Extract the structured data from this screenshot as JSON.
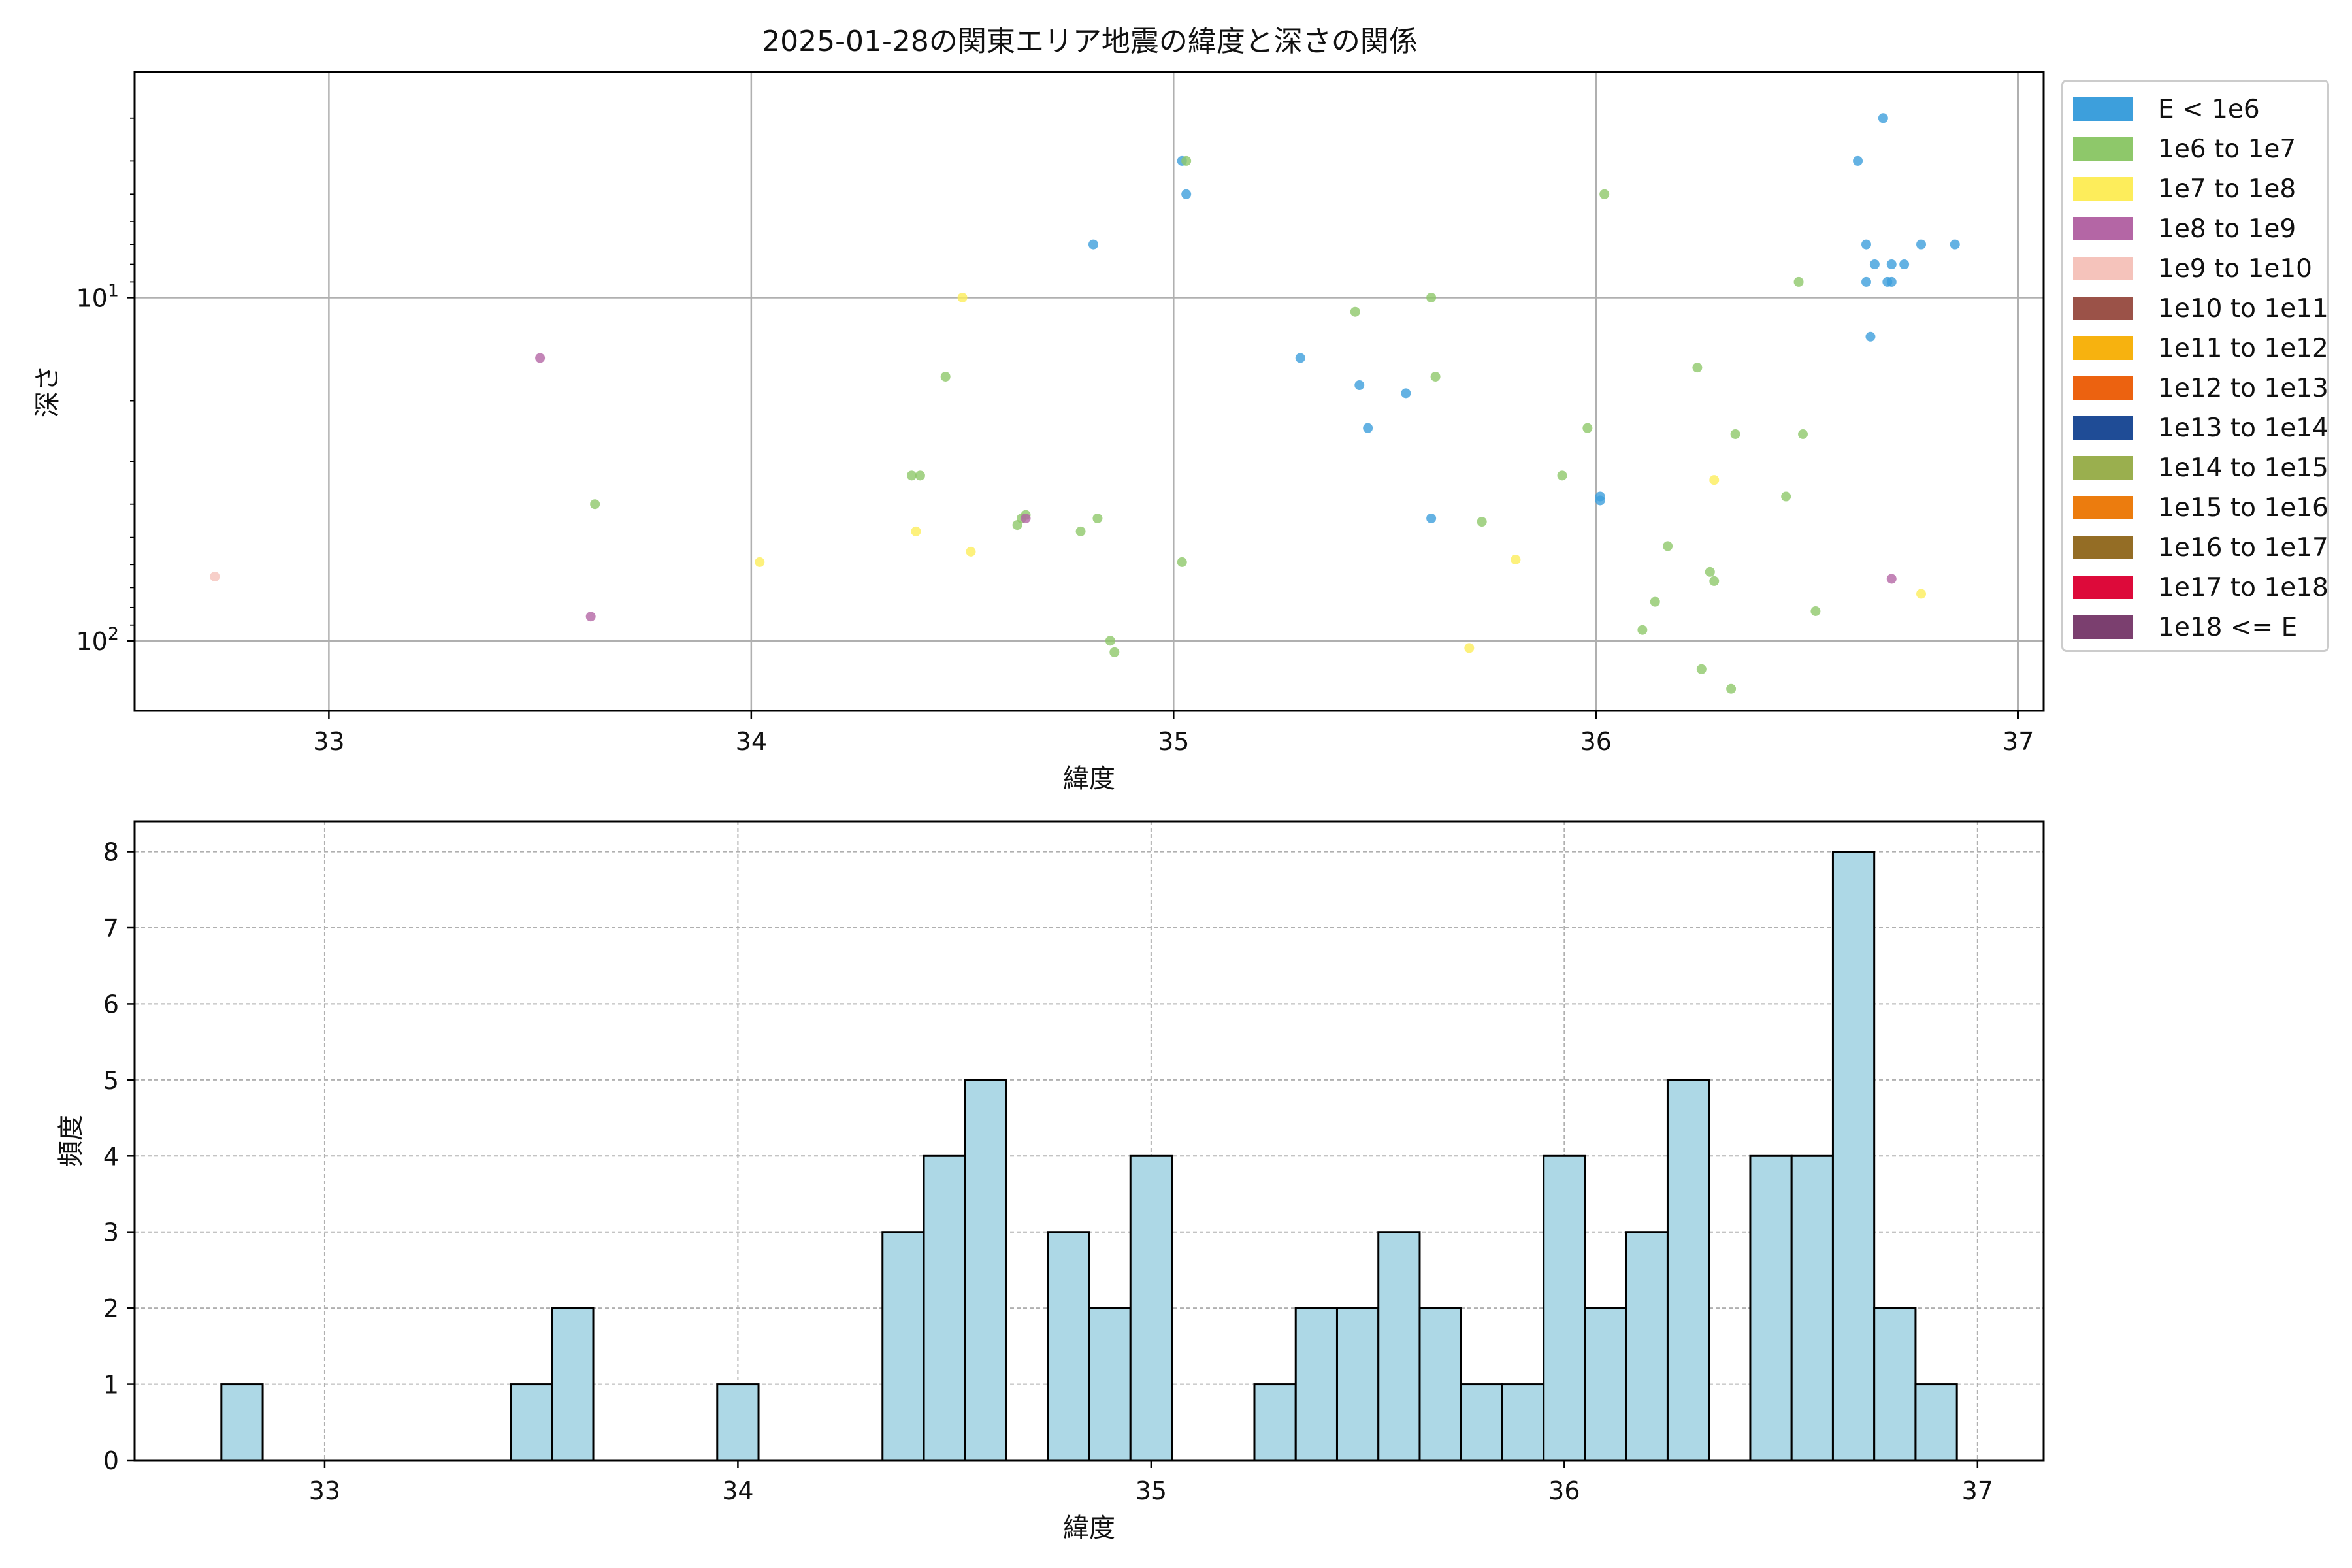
{
  "chart_data": [
    {
      "type": "scatter",
      "title": "2025-01-28の関東エリア地震の緯度と深さの関係",
      "xlabel": "緯度",
      "ylabel": "深さ",
      "xlim": [
        32.54,
        37.06
      ],
      "ylim": [
        160,
        2.2
      ],
      "y_scale": "log",
      "y_inverted": true,
      "x_ticks": [
        "33",
        "34",
        "35",
        "36",
        "37"
      ],
      "y_ticks": [
        {
          "value": 10,
          "label": "10^1"
        },
        {
          "value": 100,
          "label": "10^2"
        }
      ],
      "grid": true,
      "legend_position": "outside-right",
      "legend": [
        {
          "label": "E < 1e6",
          "color": "#3d9fdc"
        },
        {
          "label": "1e6 to 1e7",
          "color": "#8ec86a"
        },
        {
          "label": "1e7 to 1e8",
          "color": "#fded5b"
        },
        {
          "label": "1e8 to 1e9",
          "color": "#b466a5"
        },
        {
          "label": "1e9 to 1e10",
          "color": "#f5c3bb"
        },
        {
          "label": "1e10 to 1e11",
          "color": "#9b5248"
        },
        {
          "label": "1e11 to 1e12",
          "color": "#f7b20f"
        },
        {
          "label": "1e12 to 1e13",
          "color": "#ec6210"
        },
        {
          "label": "1e13 to 1e14",
          "color": "#1f4c96"
        },
        {
          "label": "1e14 to 1e15",
          "color": "#9aaf4e"
        },
        {
          "label": "1e15 to 1e16",
          "color": "#ec7c0e"
        },
        {
          "label": "1e16 to 1e17",
          "color": "#946d25"
        },
        {
          "label": "1e17 to 1e18",
          "color": "#dd0a3a"
        },
        {
          "label": "1e18 <= E",
          "color": "#7b3f6f"
        }
      ],
      "series": [
        {
          "name": "E < 1e6",
          "color": "#3d9fdc",
          "points": [
            [
              34.81,
              7
            ],
            [
              35.02,
              4
            ],
            [
              35.03,
              5
            ],
            [
              35.3,
              15
            ],
            [
              35.44,
              18
            ],
            [
              35.46,
              24
            ],
            [
              35.55,
              19
            ],
            [
              35.61,
              44
            ],
            [
              36.01,
              38
            ],
            [
              36.01,
              39
            ],
            [
              36.62,
              4
            ],
            [
              36.64,
              7
            ],
            [
              36.64,
              9
            ],
            [
              36.66,
              8
            ],
            [
              36.68,
              3
            ],
            [
              36.69,
              9
            ],
            [
              36.7,
              8
            ],
            [
              36.7,
              9
            ],
            [
              36.73,
              8
            ],
            [
              36.65,
              13
            ],
            [
              36.77,
              7
            ],
            [
              36.85,
              7
            ]
          ]
        },
        {
          "name": "1e6 to 1e7",
          "color": "#8ec86a",
          "points": [
            [
              33.63,
              40
            ],
            [
              34.38,
              33
            ],
            [
              34.4,
              33
            ],
            [
              34.46,
              17
            ],
            [
              34.63,
              46
            ],
            [
              34.64,
              44
            ],
            [
              34.65,
              43
            ],
            [
              34.78,
              48
            ],
            [
              34.82,
              44
            ],
            [
              34.85,
              100
            ],
            [
              34.86,
              108
            ],
            [
              35.02,
              59
            ],
            [
              35.03,
              4
            ],
            [
              35.43,
              11
            ],
            [
              35.61,
              10
            ],
            [
              35.62,
              17
            ],
            [
              35.73,
              45
            ],
            [
              35.92,
              33
            ],
            [
              35.98,
              24
            ],
            [
              36.02,
              5
            ],
            [
              36.11,
              93
            ],
            [
              36.14,
              77
            ],
            [
              36.17,
              53
            ],
            [
              36.24,
              16
            ],
            [
              36.25,
              121
            ],
            [
              36.27,
              63
            ],
            [
              36.28,
              67
            ],
            [
              36.32,
              138
            ],
            [
              36.33,
              25
            ],
            [
              36.45,
              38
            ],
            [
              36.48,
              9
            ],
            [
              36.49,
              25
            ],
            [
              36.52,
              82
            ]
          ]
        },
        {
          "name": "1e7 to 1e8",
          "color": "#fded5b",
          "points": [
            [
              34.02,
              59
            ],
            [
              34.39,
              48
            ],
            [
              34.5,
              10
            ],
            [
              34.52,
              55
            ],
            [
              35.7,
              105
            ],
            [
              35.81,
              58
            ],
            [
              36.28,
              34
            ],
            [
              36.77,
              73
            ]
          ]
        },
        {
          "name": "1e8 to 1e9",
          "color": "#b466a5",
          "points": [
            [
              33.5,
              15
            ],
            [
              33.62,
              85
            ],
            [
              34.65,
              44
            ],
            [
              36.7,
              66
            ]
          ]
        },
        {
          "name": "1e9 to 1e10",
          "color": "#f5c3bb",
          "points": [
            [
              32.73,
              65
            ]
          ]
        }
      ]
    },
    {
      "type": "bar",
      "xlabel": "緯度",
      "ylabel": "頻度",
      "xlim": [
        32.54,
        37.16
      ],
      "ylim": [
        0,
        8.4
      ],
      "x_ticks": [
        "33",
        "34",
        "35",
        "36",
        "37"
      ],
      "y_ticks": [
        "0",
        "1",
        "2",
        "3",
        "4",
        "5",
        "6",
        "7",
        "8"
      ],
      "grid": true,
      "bar_color": "#add8e6",
      "bin_width": 0.1,
      "bins": [
        {
          "start": 32.75,
          "count": 1
        },
        {
          "start": 33.45,
          "count": 1
        },
        {
          "start": 33.55,
          "count": 2
        },
        {
          "start": 33.95,
          "count": 1
        },
        {
          "start": 34.35,
          "count": 3
        },
        {
          "start": 34.45,
          "count": 4
        },
        {
          "start": 34.55,
          "count": 5
        },
        {
          "start": 34.75,
          "count": 3
        },
        {
          "start": 34.85,
          "count": 2
        },
        {
          "start": 34.95,
          "count": 4
        },
        {
          "start": 35.25,
          "count": 1
        },
        {
          "start": 35.35,
          "count": 2
        },
        {
          "start": 35.45,
          "count": 2
        },
        {
          "start": 35.55,
          "count": 3
        },
        {
          "start": 35.65,
          "count": 2
        },
        {
          "start": 35.75,
          "count": 1
        },
        {
          "start": 35.85,
          "count": 1
        },
        {
          "start": 35.95,
          "count": 4
        },
        {
          "start": 36.05,
          "count": 2
        },
        {
          "start": 36.15,
          "count": 3
        },
        {
          "start": 36.25,
          "count": 5
        },
        {
          "start": 36.45,
          "count": 4
        },
        {
          "start": 36.55,
          "count": 4
        },
        {
          "start": 36.65,
          "count": 8
        },
        {
          "start": 36.75,
          "count": 2
        },
        {
          "start": 36.85,
          "count": 1
        }
      ]
    }
  ]
}
